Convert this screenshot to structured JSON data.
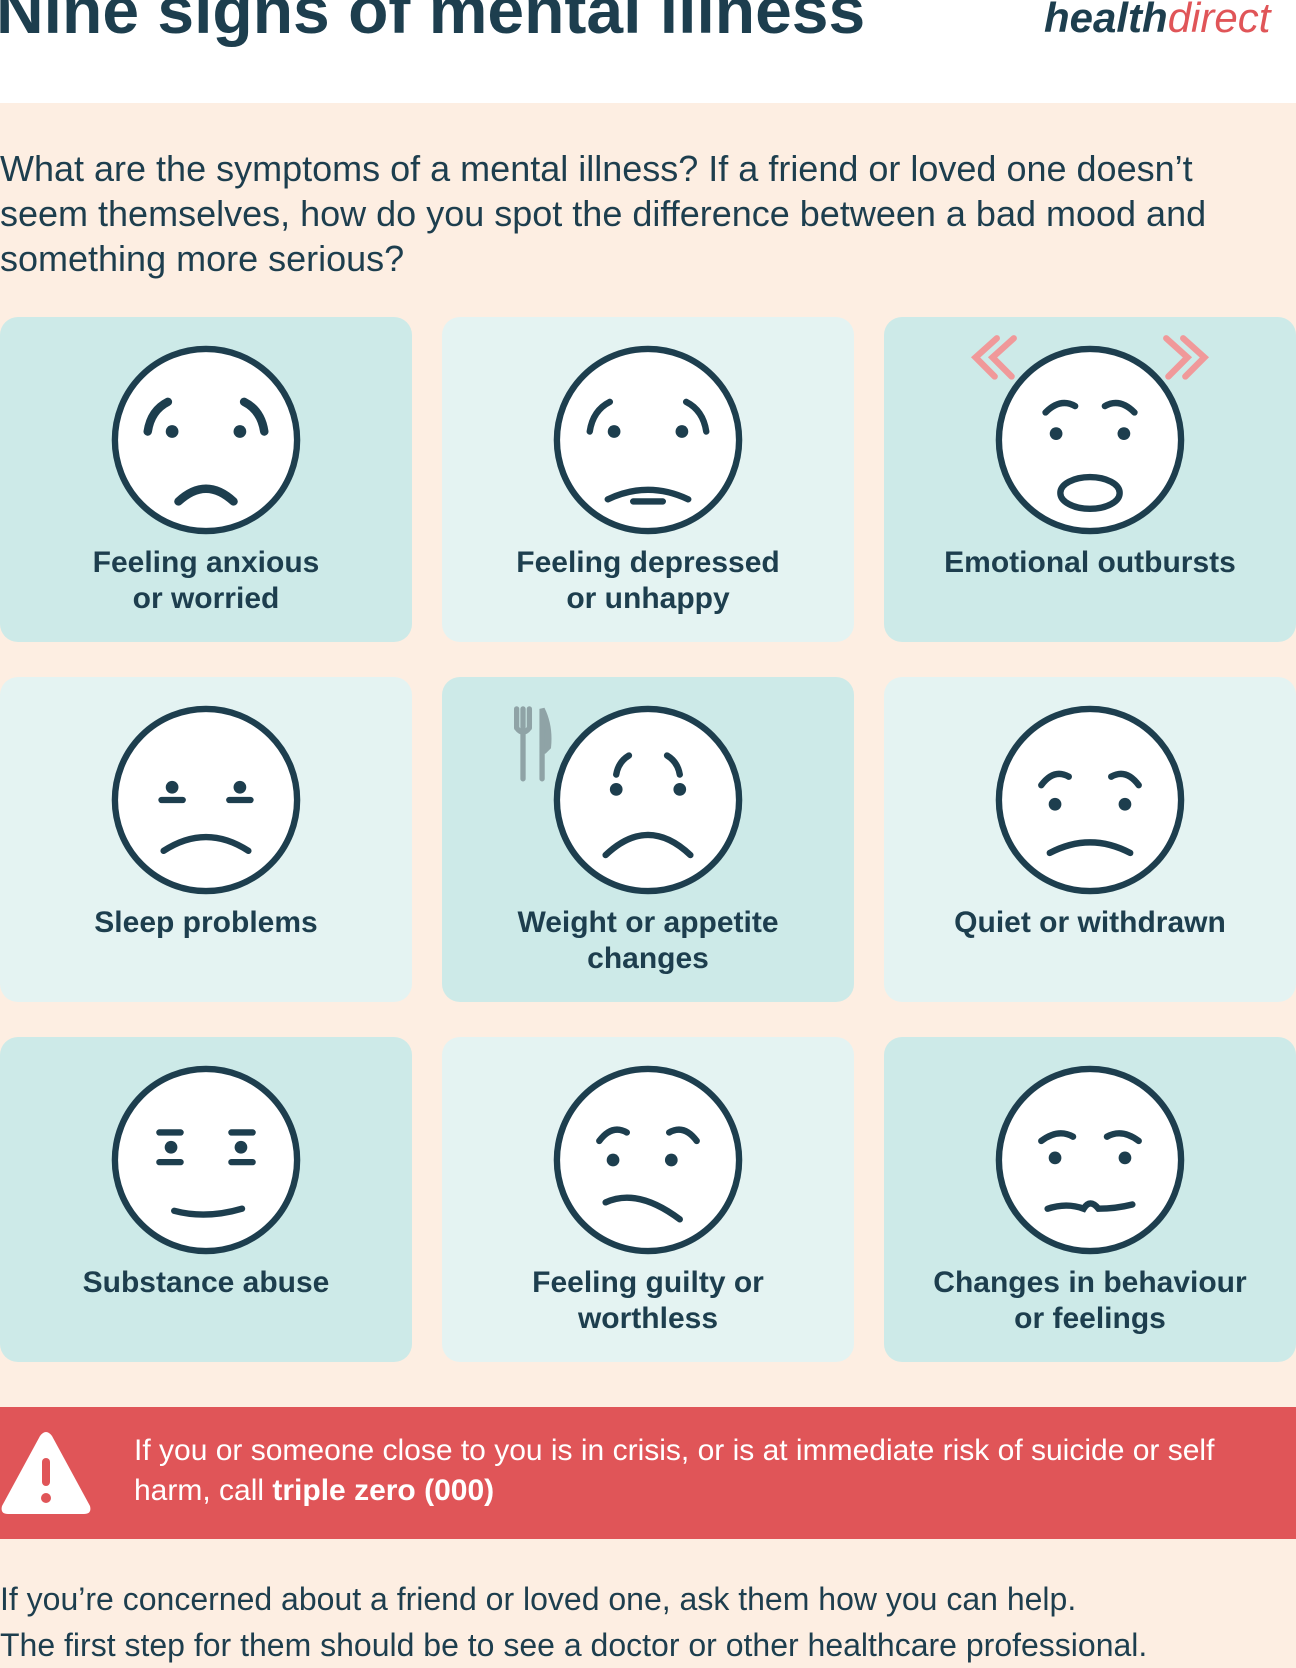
{
  "header": {
    "title": "Nine signs of mental illness",
    "logo_bold": "health",
    "logo_light": "direct"
  },
  "intro": [
    "What are the symptoms of a mental illness? If a friend or loved one doesn’t",
    "seem themselves, how do you spot the difference between a bad mood and",
    "something more serious?"
  ],
  "signs": [
    {
      "label": [
        "Feeling anxious",
        "or worried"
      ]
    },
    {
      "label": [
        "Feeling depressed",
        "or unhappy"
      ]
    },
    {
      "label": [
        "Emotional outbursts"
      ]
    },
    {
      "label": [
        "Sleep problems"
      ]
    },
    {
      "label": [
        "Weight or appetite",
        "changes"
      ]
    },
    {
      "label": [
        "Quiet or withdrawn"
      ]
    },
    {
      "label": [
        "Substance abuse"
      ]
    },
    {
      "label": [
        "Feeling guilty or",
        "worthless"
      ]
    },
    {
      "label": [
        "Changes in behaviour",
        "or feelings"
      ]
    }
  ],
  "alert": {
    "text": "If you or someone close to you is in crisis, or is at immediate risk of suicide or self harm, call",
    "emphasis": "triple zero (000)"
  },
  "footer": [
    "If you’re concerned about a friend or loved one, ask them how you can help.",
    "The first step for them should be to see a doctor or other healthcare professional."
  ]
}
